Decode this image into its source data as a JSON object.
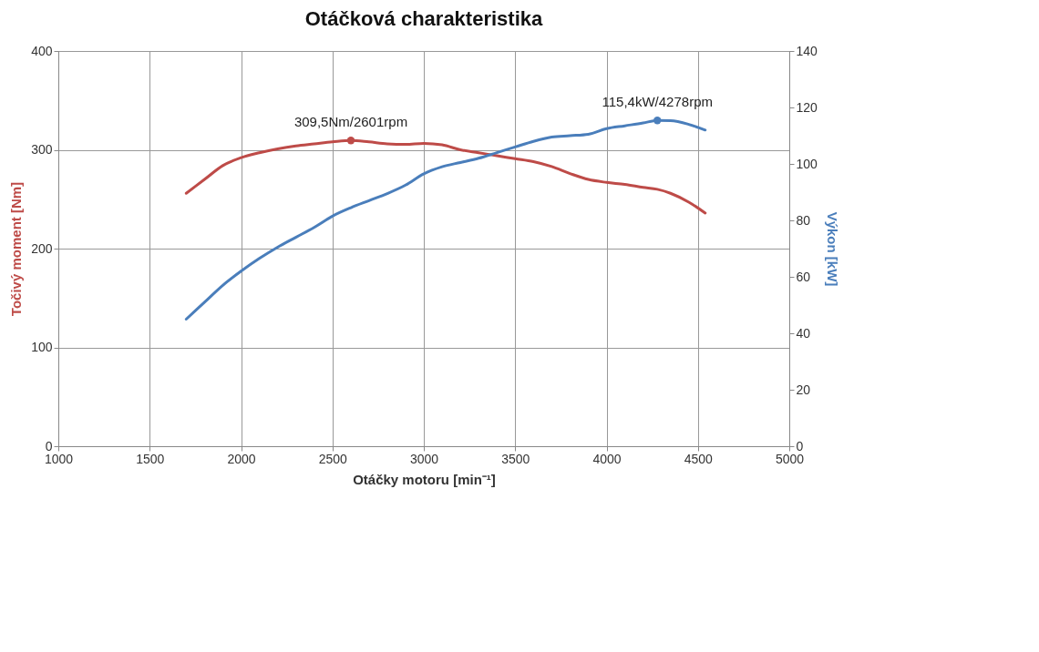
{
  "chart_data": {
    "type": "line",
    "title": "Otáčková charakteristika",
    "xlabel": "Otáčky motoru [min⁻¹]",
    "ylabel": "Točivý moment [Nm]",
    "y2label": "Výkon [kW]",
    "x": [
      1700,
      1800,
      1900,
      2000,
      2100,
      2200,
      2300,
      2400,
      2500,
      2601,
      2700,
      2800,
      2900,
      3000,
      3100,
      3200,
      3300,
      3400,
      3500,
      3600,
      3700,
      3800,
      3900,
      4000,
      4100,
      4200,
      4278,
      4350,
      4450,
      4540
    ],
    "series": [
      {
        "color": "#be4b48",
        "values": [
          256,
          270,
          284,
          292,
          297,
          301,
          304,
          306,
          308,
          309.5,
          308,
          306,
          305.5,
          306.5,
          305,
          300,
          297,
          294,
          291,
          288,
          283,
          276,
          270,
          267,
          265,
          262,
          260,
          256,
          247,
          236
        ]
      },
      {
        "color": "#4a7ebb",
        "axis": "y2",
        "values": [
          45,
          51,
          57,
          62,
          66.5,
          70.5,
          74,
          77.5,
          81.5,
          84.5,
          87,
          89.5,
          92.5,
          96.5,
          99,
          100.5,
          102,
          104,
          106,
          108,
          109.5,
          110,
          110.5,
          112.5,
          113.5,
          114.5,
          115.4,
          115.3,
          114,
          112
        ]
      }
    ],
    "annotations": [
      "309,5Nm/2601rpm",
      "115,4kW/4278rpm"
    ],
    "xlim": [
      1000,
      5000
    ],
    "xticks": [
      1000,
      1500,
      2000,
      2500,
      3000,
      3500,
      4000,
      4500,
      5000
    ],
    "ylim": [
      0,
      400
    ],
    "yticks": [
      0,
      100,
      200,
      300,
      400
    ],
    "y2lim": [
      0,
      140
    ],
    "y2ticks": [
      0,
      20,
      40,
      60,
      80,
      100,
      120,
      140
    ],
    "grid": true,
    "marker": "none",
    "line_style": "solid"
  }
}
